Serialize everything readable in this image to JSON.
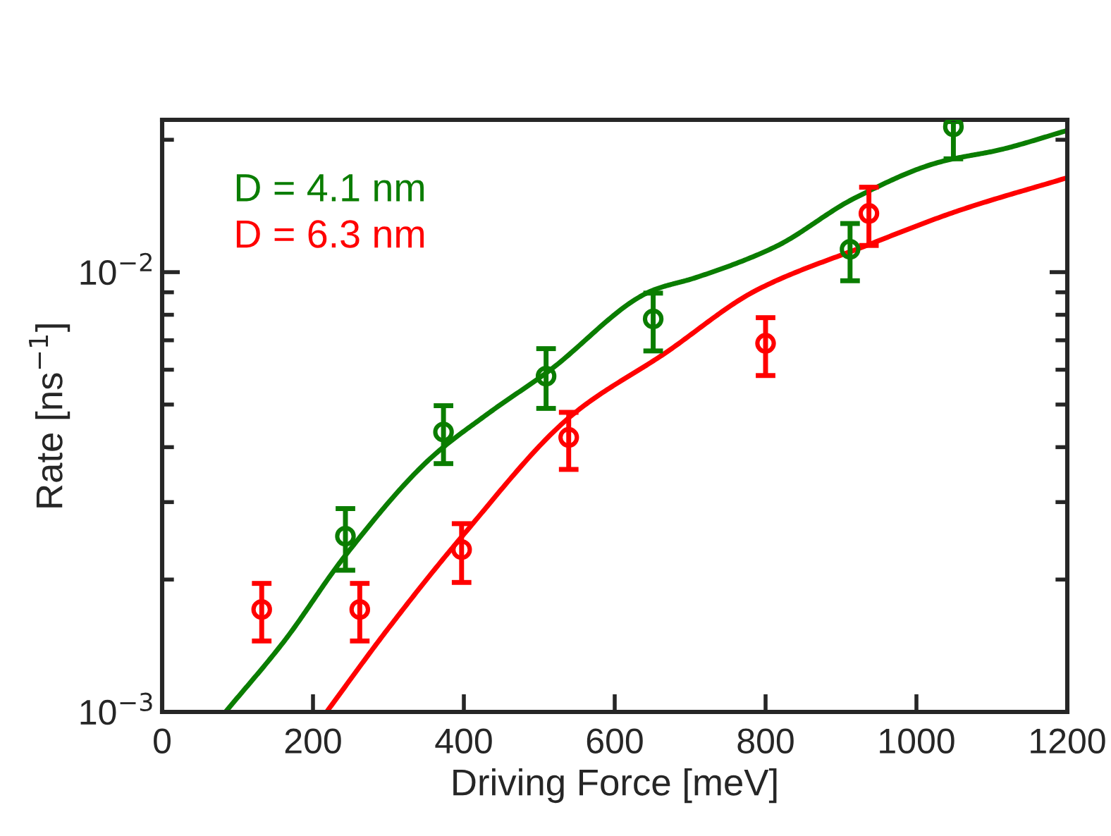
{
  "chart_data": {
    "type": "scatter",
    "xlabel": "Driving Force [meV]",
    "ylabel": "Rate [ns$^{−1}$]",
    "log": "y",
    "xlim": [
      0,
      1200
    ],
    "xticks": [
      0,
      200,
      400,
      600,
      800,
      1000,
      1200
    ],
    "ylim": [
      0.001,
      0.0222
    ],
    "yticks": [
      {
        "value": 0.001,
        "label": "10$^{−3}$"
      },
      {
        "value": 0.002,
        "label": null
      },
      {
        "value": 0.003,
        "label": null
      },
      {
        "value": 0.004,
        "label": null
      },
      {
        "value": 0.005,
        "label": null
      },
      {
        "value": 0.006,
        "label": null
      },
      {
        "value": 0.007,
        "label": null
      },
      {
        "value": 0.008,
        "label": null
      },
      {
        "value": 0.009,
        "label": null
      },
      {
        "value": 0.01,
        "label": "10$^{−2}$"
      },
      {
        "value": 0.02,
        "label": null
      }
    ],
    "grid": false,
    "legend": "top left",
    "marker": "circle",
    "series": [
      {
        "type": "line",
        "name": "D = 4.1 nm",
        "color": "#0a7d00",
        "line_style": "solid",
        "marker": "none",
        "x": [
          84,
          162,
          243,
          357,
          430,
          511,
          651,
          706,
          812,
          917,
          1031,
          1112,
          1200
        ],
        "values": [
          0.001,
          0.00145,
          0.00227,
          0.00379,
          0.00474,
          0.00593,
          0.0091,
          0.0097,
          0.0114,
          0.0147,
          0.0178,
          0.019,
          0.021
        ]
      },
      {
        "type": "line",
        "name": "D = 6.3 nm",
        "color": "#ff0000",
        "line_style": "solid",
        "marker": "none",
        "x": [
          218,
          300,
          397,
          544,
          666,
          788,
          934,
          1056,
          1200
        ],
        "values": [
          0.001,
          0.00155,
          0.0025,
          0.00474,
          0.00653,
          0.0091,
          0.0115,
          0.0138,
          0.0164
        ]
      },
      {
        "color": "#0a7d00",
        "x": [
          243,
          373,
          509,
          651,
          912,
          1049
        ],
        "values": [
          0.00251,
          0.00433,
          0.0058,
          0.00783,
          0.01127,
          0.0214
        ],
        "errors": [
          [
            0.0021,
            0.0029
          ],
          [
            0.00367,
            0.00497
          ],
          [
            0.0049,
            0.0067
          ],
          [
            0.00662,
            0.00896
          ],
          [
            0.00956,
            0.0129
          ],
          [
            0.0181,
            0.022
          ]
        ]
      },
      {
        "color": "#ff0000",
        "x": [
          132,
          262,
          397,
          539,
          800,
          937
        ],
        "values": [
          0.00171,
          0.00171,
          0.00234,
          0.00421,
          0.00689,
          0.0136
        ],
        "errors": [
          [
            0.00145,
            0.00196
          ],
          [
            0.00145,
            0.00196
          ],
          [
            0.00197,
            0.00268
          ],
          [
            0.00356,
            0.0048
          ],
          [
            0.00582,
            0.00788
          ],
          [
            0.0115,
            0.0156
          ]
        ]
      }
    ]
  }
}
